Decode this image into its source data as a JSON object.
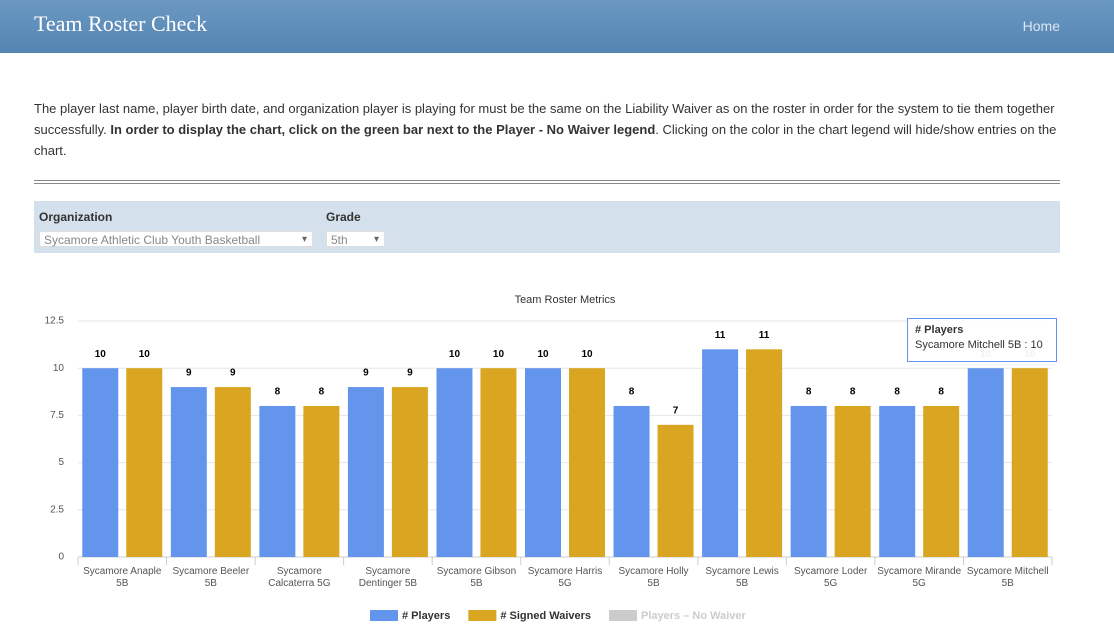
{
  "header": {
    "title": "Team Roster Check",
    "nav": [
      "Home"
    ]
  },
  "intro": {
    "text_start": "The player last name, player birth date, and organization player is playing for must be the same on the Liability Waiver as on the roster in order for the system to tie them together successfully. ",
    "text_bold": "In order to display the chart, click on the green bar next to the Player - No Waiver legend",
    "text_end": ". Clicking on the color in the chart legend will hide/show entries on the chart."
  },
  "filters": {
    "organization_label": "Organization",
    "organization_value": "Sycamore Athletic Club Youth Basketball",
    "grade_label": "Grade",
    "grade_value": "5th"
  },
  "chart_data": {
    "type": "bar",
    "title": "Team Roster Metrics",
    "categories": [
      "Sycamore Anaple 5B",
      "Sycamore Beeler 5B",
      "Sycamore Calcaterra 5G",
      "Sycamore Dentinger 5B",
      "Sycamore Gibson 5B",
      "Sycamore Harris 5G",
      "Sycamore Holly 5B",
      "Sycamore Lewis 5B",
      "Sycamore Loder 5G",
      "Sycamore Mirande 5G",
      "Sycamore Mitchell 5B"
    ],
    "series": [
      {
        "name": "# Players",
        "color": "#6495ed",
        "values": [
          10,
          9,
          8,
          9,
          10,
          10,
          8,
          11,
          8,
          8,
          10
        ]
      },
      {
        "name": "# Signed Waivers",
        "color": "#daa520",
        "values": [
          10,
          9,
          8,
          9,
          10,
          10,
          7,
          11,
          8,
          8,
          10
        ]
      },
      {
        "name": "Players – No Waiver",
        "color": "#cccccc",
        "hidden": true
      }
    ],
    "ylim": [
      0,
      12.5
    ],
    "yticks": [
      0,
      2.5,
      5,
      7.5,
      10,
      12.5
    ],
    "grid": true,
    "tooltip": {
      "title": "# Players",
      "text": "Sycamore Mitchell 5B : 10"
    }
  }
}
